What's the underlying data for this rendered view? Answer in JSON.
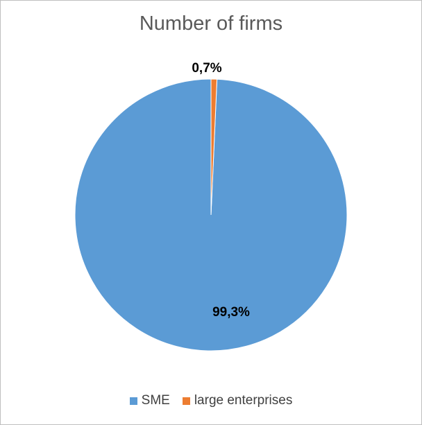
{
  "chart_data": {
    "type": "pie",
    "title": "Number of firms",
    "categories": [
      "SME",
      "large enterprises"
    ],
    "values": [
      99.3,
      0.7
    ],
    "data_labels": [
      "99,3%",
      "0,7%"
    ],
    "colors": [
      "#5b9bd5",
      "#ed7d31"
    ],
    "legend_position": "bottom",
    "start_angle_deg": 0,
    "direction": "clockwise"
  }
}
